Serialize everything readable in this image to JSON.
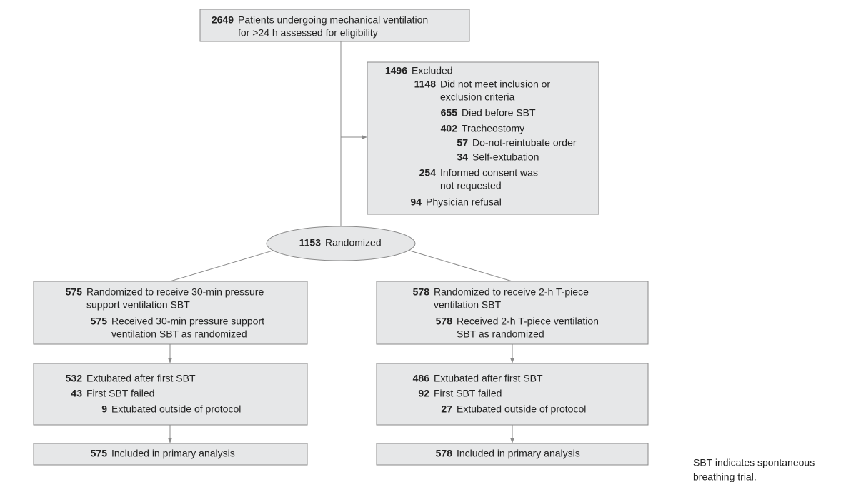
{
  "nodes": [
    {
      "rows": [
        {
          "n": 2649,
          "lines": [
            "Patients undergoing mechanical ventilation",
            "for >24 h assessed for eligibility"
          ]
        }
      ]
    },
    {
      "rows": [
        {
          "n": 1496,
          "lines": [
            "Excluded"
          ]
        },
        {
          "n": 1148,
          "lines": [
            "Did not meet inclusion or",
            "exclusion criteria"
          ]
        },
        {
          "n": 655,
          "lines": [
            "Died before SBT"
          ]
        },
        {
          "n": 402,
          "lines": [
            "Tracheostomy"
          ]
        },
        {
          "n": 57,
          "lines": [
            "Do-not-reintubate order"
          ]
        },
        {
          "n": 34,
          "lines": [
            "Self-extubation"
          ]
        },
        {
          "n": 254,
          "lines": [
            "Informed consent was",
            "not requested"
          ]
        },
        {
          "n": 94,
          "lines": [
            "Physician refusal"
          ]
        }
      ]
    },
    {
      "rows": [
        {
          "n": 1153,
          "lines": [
            "Randomized"
          ]
        }
      ]
    },
    {
      "rows": [
        {
          "n": 575,
          "lines": [
            "Randomized to receive 30-min pressure",
            "support ventilation SBT"
          ]
        },
        {
          "n": 575,
          "lines": [
            "Received 30-min pressure support",
            "ventilation SBT as randomized"
          ]
        }
      ]
    },
    {
      "rows": [
        {
          "n": 578,
          "lines": [
            "Randomized to receive 2-h T-piece",
            "ventilation SBT"
          ]
        },
        {
          "n": 578,
          "lines": [
            "Received 2-h T-piece ventilation",
            "SBT as randomized"
          ]
        }
      ]
    },
    {
      "rows": [
        {
          "n": 532,
          "lines": [
            "Extubated after first SBT"
          ]
        },
        {
          "n": 43,
          "lines": [
            "First SBT failed"
          ]
        },
        {
          "n": 9,
          "lines": [
            "Extubated outside of protocol"
          ]
        }
      ]
    },
    {
      "rows": [
        {
          "n": 486,
          "lines": [
            "Extubated after first SBT"
          ]
        },
        {
          "n": 92,
          "lines": [
            "First SBT failed"
          ]
        },
        {
          "n": 27,
          "lines": [
            "Extubated outside of protocol"
          ]
        }
      ]
    },
    {
      "rows": [
        {
          "n": 575,
          "lines": [
            "Included in primary analysis"
          ]
        }
      ]
    },
    {
      "rows": [
        {
          "n": 578,
          "lines": [
            "Included in primary analysis"
          ]
        }
      ]
    }
  ],
  "footnote": [
    "SBT indicates spontaneous",
    "breathing trial."
  ]
}
